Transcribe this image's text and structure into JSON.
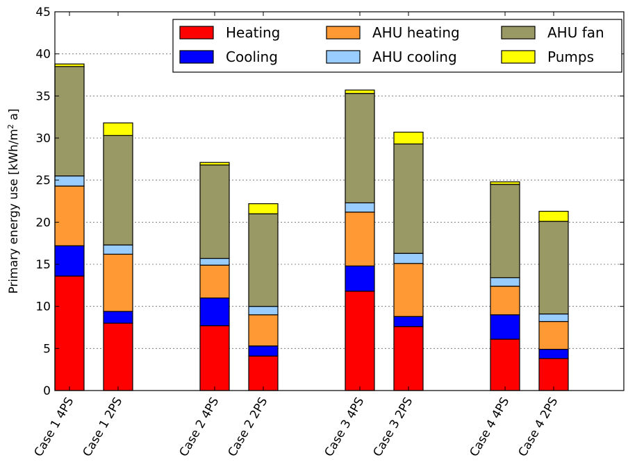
{
  "chart_data": {
    "type": "bar",
    "stacked": true,
    "title": "",
    "xlabel": "",
    "ylabel": "Primary energy use [kWh/m² a]",
    "ylabel_parts": {
      "main": "Primary energy use [kWh/m",
      "sup": "2",
      "tail": " a]"
    },
    "ylim": [
      0,
      45
    ],
    "yticks": [
      "0",
      "5",
      "10",
      "15",
      "20",
      "25",
      "30",
      "35",
      "40",
      "45"
    ],
    "grid": true,
    "legend_position": "top-right",
    "categories": [
      "Case 1 4PS",
      "Case 1 2PS",
      "Case 2 4PS",
      "Case 2 2PS",
      "Case 3 4PS",
      "Case 3 2PS",
      "Case 4 4PS",
      "Case 4 2PS"
    ],
    "series": [
      {
        "name": "Heating",
        "color": "#ff0000",
        "values": [
          13.6,
          8.0,
          7.7,
          4.1,
          11.8,
          7.6,
          6.1,
          3.8
        ]
      },
      {
        "name": "Cooling",
        "color": "#0000ff",
        "values": [
          3.6,
          1.4,
          3.3,
          1.2,
          3.0,
          1.2,
          2.9,
          1.1
        ]
      },
      {
        "name": "AHU heating",
        "color": "#ff9933",
        "values": [
          7.1,
          6.8,
          3.9,
          3.7,
          6.4,
          6.3,
          3.4,
          3.3
        ]
      },
      {
        "name": "AHU cooling",
        "color": "#99ccff",
        "values": [
          1.2,
          1.1,
          0.8,
          1.0,
          1.1,
          1.2,
          1.0,
          0.9
        ]
      },
      {
        "name": "AHU fan",
        "color": "#999966",
        "values": [
          13.0,
          13.0,
          11.1,
          11.0,
          13.0,
          13.0,
          11.1,
          11.0
        ]
      },
      {
        "name": "Pumps",
        "color": "#ffff00",
        "values": [
          0.3,
          1.5,
          0.3,
          1.2,
          0.4,
          1.4,
          0.3,
          1.2
        ]
      }
    ]
  }
}
